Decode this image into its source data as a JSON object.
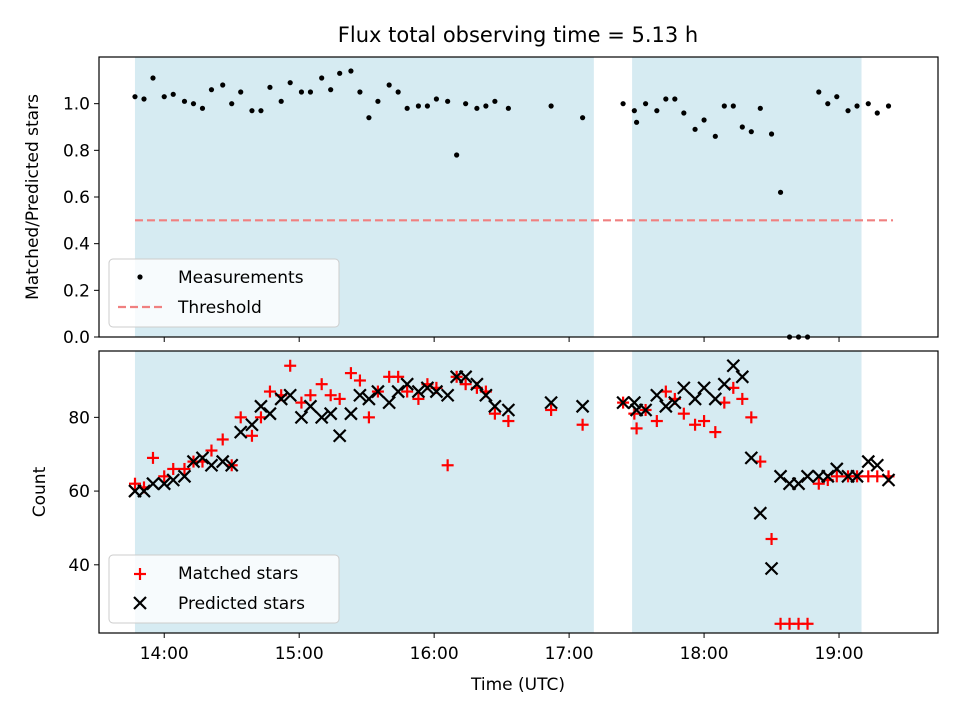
{
  "figure": {
    "title": "Flux total observing time = 5.13 h"
  },
  "colors": {
    "shade": "#add8e6",
    "measurement": "#000000",
    "threshold": "#f08080",
    "matched": "#ff0000",
    "predicted": "#000000"
  },
  "chart_data": [
    {
      "type": "scatter",
      "ylabel": "Matched/Predicted stars",
      "xlim": [
        "13:31",
        "19:44"
      ],
      "ylim": [
        0,
        1.2
      ],
      "yticks": [
        "0.0",
        "0.2",
        "0.4",
        "0.6",
        "0.8",
        "1.0"
      ],
      "grid": false,
      "legend_position": "lower-left",
      "shaded_intervals": [
        [
          "13:47",
          "17:11"
        ],
        [
          "17:28",
          "19:10"
        ]
      ],
      "threshold": {
        "name": "Threshold",
        "value": 0.5,
        "x_range": [
          "13:47",
          "19:24"
        ],
        "style": "dashed"
      },
      "series": [
        {
          "name": "Measurements",
          "x": [
            "13:47",
            "13:51",
            "13:55",
            "14:00",
            "14:04",
            "14:09",
            "14:13",
            "14:17",
            "14:21",
            "14:26",
            "14:30",
            "14:34",
            "14:39",
            "14:43",
            "14:47",
            "14:52",
            "14:56",
            "15:01",
            "15:05",
            "15:10",
            "15:14",
            "15:18",
            "15:23",
            "15:27",
            "15:31",
            "15:35",
            "15:40",
            "15:44",
            "15:48",
            "15:53",
            "15:57",
            "16:01",
            "16:06",
            "16:10",
            "16:14",
            "16:19",
            "16:23",
            "16:27",
            "16:33",
            "16:52",
            "17:06",
            "17:24",
            "17:29",
            "17:30",
            "17:34",
            "17:39",
            "17:43",
            "17:47",
            "17:51",
            "17:56",
            "18:00",
            "18:05",
            "18:09",
            "18:13",
            "18:17",
            "18:21",
            "18:25",
            "18:30",
            "18:34",
            "18:38",
            "18:42",
            "18:46",
            "18:51",
            "18:55",
            "18:59",
            "19:04",
            "19:08",
            "19:13",
            "19:17",
            "19:22"
          ],
          "values": [
            1.03,
            1.02,
            1.11,
            1.03,
            1.04,
            1.01,
            1.0,
            0.98,
            1.06,
            1.08,
            1.0,
            1.05,
            0.97,
            0.97,
            1.07,
            1.01,
            1.09,
            1.05,
            1.05,
            1.11,
            1.06,
            1.13,
            1.14,
            1.05,
            0.94,
            1.01,
            1.08,
            1.05,
            0.98,
            0.99,
            0.99,
            1.02,
            1.01,
            0.78,
            1.0,
            0.98,
            0.99,
            1.01,
            0.98,
            0.99,
            0.94,
            1.0,
            0.97,
            0.92,
            1.0,
            0.97,
            1.02,
            1.02,
            0.96,
            0.89,
            0.93,
            0.86,
            0.99,
            0.99,
            0.9,
            0.88,
            0.98,
            0.87,
            0.62,
            0.0,
            0.0,
            0.0,
            1.05,
            1.0,
            1.03,
            0.97,
            0.99,
            1.0,
            0.96,
            0.99
          ]
        }
      ]
    },
    {
      "type": "scatter",
      "xlabel": "Time (UTC)",
      "ylabel": "Count",
      "xlim": [
        "13:31",
        "19:44"
      ],
      "ylim": [
        21.5,
        98
      ],
      "xticks": [
        "14:00",
        "15:00",
        "16:00",
        "17:00",
        "18:00",
        "19:00"
      ],
      "yticks": [
        "40",
        "60",
        "80"
      ],
      "grid": false,
      "legend_position": "lower-left",
      "shaded_intervals": [
        [
          "13:47",
          "17:11"
        ],
        [
          "17:28",
          "19:10"
        ]
      ],
      "series": [
        {
          "name": "Matched stars",
          "marker": "+",
          "x": [
            "13:47",
            "13:51",
            "13:55",
            "14:00",
            "14:04",
            "14:09",
            "14:13",
            "14:17",
            "14:21",
            "14:26",
            "14:30",
            "14:34",
            "14:39",
            "14:43",
            "14:47",
            "14:52",
            "14:56",
            "15:01",
            "15:05",
            "15:10",
            "15:14",
            "15:18",
            "15:23",
            "15:27",
            "15:31",
            "15:35",
            "15:40",
            "15:44",
            "15:48",
            "15:53",
            "15:57",
            "16:01",
            "16:06",
            "16:10",
            "16:14",
            "16:19",
            "16:23",
            "16:27",
            "16:33",
            "16:52",
            "17:06",
            "17:24",
            "17:29",
            "17:30",
            "17:34",
            "17:39",
            "17:43",
            "17:47",
            "17:51",
            "17:56",
            "18:00",
            "18:05",
            "18:09",
            "18:13",
            "18:17",
            "18:21",
            "18:25",
            "18:30",
            "18:34",
            "18:38",
            "18:42",
            "18:46",
            "18:51",
            "18:55",
            "18:59",
            "19:04",
            "19:08",
            "19:13",
            "19:17",
            "19:22"
          ],
          "values": [
            62,
            61,
            69,
            64,
            66,
            66,
            68,
            68,
            71,
            74,
            67,
            80,
            75,
            80,
            87,
            86,
            94,
            84,
            86,
            89,
            86,
            85,
            92,
            90,
            80,
            87,
            91,
            91,
            87,
            85,
            89,
            88,
            67,
            91,
            89,
            88,
            87,
            81,
            79,
            82,
            78,
            84,
            81,
            77,
            82,
            79,
            87,
            85,
            81,
            78,
            79,
            76,
            84,
            88,
            85,
            80,
            68,
            47,
            24,
            24,
            24,
            24,
            62,
            63,
            64,
            64,
            64,
            64,
            64,
            64
          ]
        },
        {
          "name": "Predicted stars",
          "marker": "x",
          "x": [
            "13:47",
            "13:51",
            "13:55",
            "14:00",
            "14:04",
            "14:09",
            "14:13",
            "14:17",
            "14:21",
            "14:26",
            "14:30",
            "14:34",
            "14:39",
            "14:43",
            "14:47",
            "14:52",
            "14:56",
            "15:01",
            "15:05",
            "15:10",
            "15:14",
            "15:18",
            "15:23",
            "15:27",
            "15:31",
            "15:35",
            "15:40",
            "15:44",
            "15:48",
            "15:53",
            "15:57",
            "16:01",
            "16:06",
            "16:10",
            "16:14",
            "16:19",
            "16:23",
            "16:27",
            "16:33",
            "16:52",
            "17:06",
            "17:24",
            "17:29",
            "17:30",
            "17:34",
            "17:39",
            "17:43",
            "17:47",
            "17:51",
            "17:56",
            "18:00",
            "18:05",
            "18:09",
            "18:13",
            "18:17",
            "18:21",
            "18:25",
            "18:30",
            "18:34",
            "18:38",
            "18:42",
            "18:46",
            "18:51",
            "18:55",
            "18:59",
            "19:04",
            "19:08",
            "19:13",
            "19:17",
            "19:22"
          ],
          "values": [
            60,
            60,
            62,
            62,
            63,
            64,
            68,
            69,
            67,
            68,
            67,
            76,
            78,
            83,
            81,
            85,
            86,
            80,
            83,
            80,
            81,
            75,
            81,
            86,
            85,
            87,
            84,
            87,
            89,
            87,
            88,
            87,
            86,
            91,
            91,
            89,
            86,
            83,
            82,
            84,
            83,
            84,
            84,
            82,
            82,
            86,
            83,
            84,
            88,
            85,
            88,
            85,
            89,
            94,
            91,
            69,
            54,
            39,
            64,
            62,
            62,
            64,
            64,
            64,
            66,
            64,
            64,
            68,
            67,
            63
          ]
        }
      ]
    }
  ]
}
